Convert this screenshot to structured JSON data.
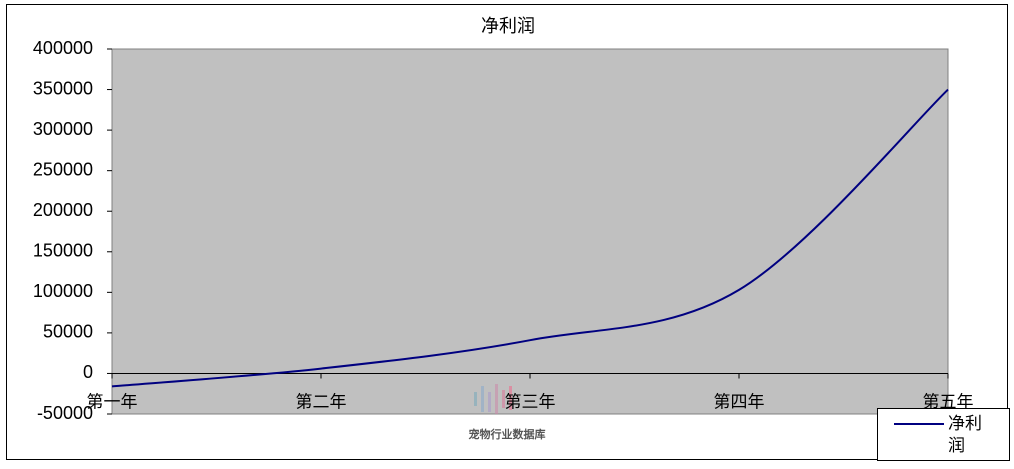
{
  "chart_data": {
    "type": "line",
    "title": "净利润",
    "categories": [
      "第一年",
      "第二年",
      "第三年",
      "第四年",
      "第五年"
    ],
    "series": [
      {
        "name": "净利润",
        "color": "#000080",
        "values": [
          -16000,
          6000,
          41000,
          103000,
          350000
        ]
      }
    ],
    "ylim": [
      -50000,
      400000
    ],
    "yticks": [
      -50000,
      0,
      50000,
      100000,
      150000,
      200000,
      250000,
      300000,
      350000,
      400000
    ],
    "plot_background": "#c0c0c0",
    "legend": "bottom-right",
    "watermark": "宠物行业数据库"
  }
}
